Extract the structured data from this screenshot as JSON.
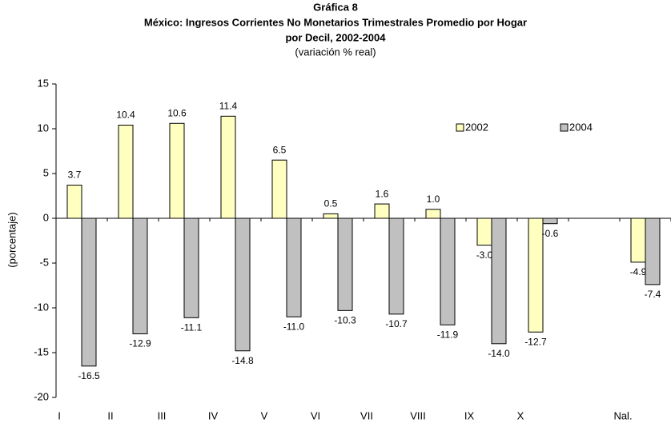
{
  "chart_data": {
    "type": "bar",
    "title": [
      "Gráfica 8",
      "México: Ingresos Corrientes No Monetarios Trimestrales Promedio por Hogar",
      "por Decil, 2002-2004"
    ],
    "subtitle": "(variación % real)",
    "y_label": "(porcentaje)",
    "categories": [
      "I",
      "II",
      "III",
      "IV",
      "V",
      "VI",
      "VII",
      "VIII",
      "IX",
      "X",
      null,
      "Nal."
    ],
    "series": [
      {
        "name": "2002",
        "color": "#ffffc0",
        "values": [
          3.7,
          10.4,
          10.6,
          11.4,
          6.5,
          0.5,
          1.6,
          1.0,
          -3.0,
          -12.7,
          null,
          -4.9
        ],
        "value_labels": [
          "3.7",
          "10.4",
          "10.6",
          "11.4",
          "6.5",
          "0.5",
          "1.6",
          "1.0",
          "-3.0",
          "-12.7",
          null,
          "-4.9"
        ]
      },
      {
        "name": "2004",
        "color": "#c0c0c0",
        "values": [
          -16.5,
          -12.9,
          -11.1,
          -14.8,
          -11.0,
          -10.3,
          -10.7,
          -11.9,
          -14.0,
          -0.6,
          null,
          -7.4
        ],
        "value_labels": [
          "-16.5",
          "-12.9",
          "-11.1",
          "-14.8",
          "-11.0",
          "-10.3",
          "-10.7",
          "-11.9",
          "-14.0",
          "-0.6",
          null,
          "-7.4"
        ]
      }
    ],
    "ylim": [
      -20,
      15
    ],
    "yticks": [
      -20,
      -15,
      -10,
      -5,
      0,
      5,
      10,
      15
    ],
    "grid": false
  }
}
